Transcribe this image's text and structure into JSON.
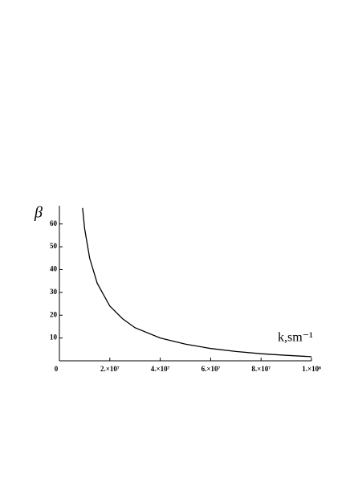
{
  "chart_data": {
    "type": "line",
    "y_label": "β",
    "x_label": "k,sm⁻¹",
    "x": [
      9200000,
      10000000,
      12000000,
      15000000,
      20000000,
      25000000,
      30000000,
      40000000,
      50000000,
      60000000,
      70000000,
      80000000,
      90000000,
      100000000
    ],
    "values": [
      67,
      58,
      45,
      34,
      24,
      18.5,
      14.5,
      10,
      7.3,
      5.4,
      4.1,
      3.1,
      2.4,
      1.8
    ],
    "color": "#000000",
    "xlim": [
      0,
      100000000
    ],
    "xticks": [
      0,
      {
        "value": 20000000,
        "label": "2.×10⁷"
      },
      {
        "value": 40000000,
        "label": "4.×10⁷"
      },
      {
        "value": 60000000,
        "label": "6.×10⁷"
      },
      {
        "value": 80000000,
        "label": "8.×10⁷"
      },
      {
        "value": 100000000,
        "label": "1.×10⁸"
      }
    ],
    "ylim": [
      0,
      68
    ],
    "yticks": [
      10,
      20,
      30,
      40,
      50,
      60
    ]
  }
}
